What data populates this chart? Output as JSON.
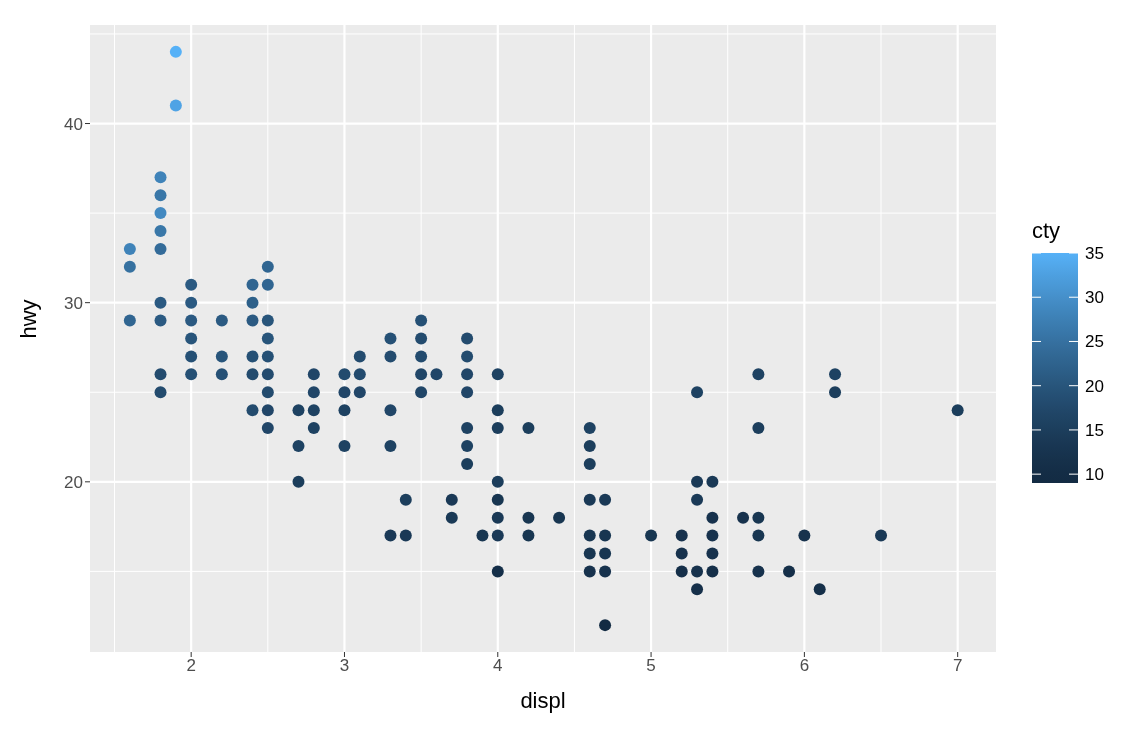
{
  "chart_data": {
    "type": "scatter",
    "xlabel": "displ",
    "ylabel": "hwy",
    "clabel": "cty",
    "xlim": [
      1.34,
      7.25
    ],
    "xticks": [
      2,
      3,
      4,
      5,
      6,
      7
    ],
    "ylim": [
      10.5,
      45.5
    ],
    "yticks": [
      20,
      30,
      40
    ],
    "clim": [
      9,
      35
    ],
    "cticks": [
      10,
      15,
      20,
      25,
      30,
      35
    ],
    "grid": true,
    "marker": "circle",
    "x": [
      1.6,
      1.6,
      1.6,
      1.8,
      1.8,
      1.8,
      1.8,
      1.8,
      1.8,
      1.8,
      1.8,
      1.8,
      1.9,
      1.9,
      2.0,
      2.0,
      2.0,
      2.0,
      2.0,
      2.0,
      2.2,
      2.2,
      2.2,
      2.4,
      2.4,
      2.4,
      2.4,
      2.4,
      2.4,
      2.5,
      2.5,
      2.5,
      2.5,
      2.5,
      2.5,
      2.5,
      2.5,
      2.5,
      2.7,
      2.7,
      2.7,
      2.8,
      2.8,
      2.8,
      2.8,
      3.0,
      3.0,
      3.0,
      3.0,
      3.1,
      3.1,
      3.1,
      3.3,
      3.3,
      3.3,
      3.3,
      3.3,
      3.4,
      3.4,
      3.5,
      3.5,
      3.5,
      3.5,
      3.5,
      3.6,
      3.7,
      3.7,
      3.8,
      3.8,
      3.8,
      3.8,
      3.8,
      3.8,
      3.8,
      3.9,
      4.0,
      4.0,
      4.0,
      4.0,
      4.0,
      4.0,
      4.0,
      4.0,
      4.2,
      4.2,
      4.2,
      4.4,
      4.6,
      4.6,
      4.6,
      4.6,
      4.6,
      4.6,
      4.6,
      4.7,
      4.7,
      4.7,
      4.7,
      4.7,
      5.0,
      5.2,
      5.2,
      5.2,
      5.3,
      5.3,
      5.3,
      5.3,
      5.3,
      5.4,
      5.4,
      5.4,
      5.4,
      5.4,
      5.6,
      5.7,
      5.7,
      5.7,
      5.7,
      5.7,
      5.9,
      6.0,
      6.1,
      6.2,
      6.2,
      6.5,
      7.0
    ],
    "values": [
      33,
      32,
      29,
      37,
      36,
      35,
      34,
      33,
      30,
      29,
      26,
      25,
      44,
      41,
      31,
      30,
      29,
      28,
      27,
      26,
      29,
      27,
      26,
      31,
      30,
      29,
      27,
      26,
      24,
      32,
      31,
      29,
      28,
      27,
      26,
      25,
      24,
      23,
      24,
      22,
      20,
      26,
      25,
      24,
      23,
      26,
      25,
      24,
      22,
      27,
      26,
      25,
      28,
      27,
      24,
      22,
      17,
      19,
      17,
      29,
      28,
      27,
      26,
      25,
      26,
      19,
      18,
      28,
      27,
      26,
      25,
      23,
      22,
      21,
      17,
      26,
      24,
      23,
      20,
      19,
      18,
      17,
      15,
      23,
      18,
      17,
      18,
      23,
      22,
      21,
      19,
      17,
      16,
      15,
      19,
      17,
      16,
      15,
      12,
      17,
      17,
      16,
      15,
      25,
      20,
      19,
      15,
      14,
      20,
      18,
      17,
      16,
      15,
      18,
      26,
      23,
      18,
      17,
      15,
      15,
      17,
      14,
      26,
      25,
      17,
      24
    ],
    "cvalues": [
      28,
      25,
      23,
      28,
      26,
      29,
      26,
      24,
      21,
      21,
      18,
      18,
      35,
      33,
      21,
      21,
      21,
      20,
      19,
      19,
      21,
      20,
      19,
      23,
      22,
      21,
      19,
      18,
      18,
      23,
      23,
      20,
      20,
      19,
      18,
      18,
      17,
      17,
      16,
      16,
      15,
      17,
      17,
      16,
      16,
      18,
      17,
      16,
      16,
      18,
      18,
      17,
      19,
      18,
      17,
      16,
      14,
      15,
      14,
      19,
      18,
      18,
      17,
      17,
      17,
      14,
      14,
      18,
      18,
      17,
      17,
      16,
      16,
      15,
      13,
      16,
      15,
      15,
      15,
      13,
      14,
      14,
      11,
      15,
      13,
      13,
      13,
      16,
      15,
      15,
      14,
      13,
      13,
      12,
      14,
      13,
      13,
      12,
      9,
      13,
      12,
      12,
      11,
      16,
      14,
      14,
      12,
      11,
      14,
      12,
      12,
      12,
      11,
      12,
      16,
      15,
      13,
      13,
      12,
      11,
      12,
      11,
      16,
      15,
      14,
      15
    ]
  }
}
